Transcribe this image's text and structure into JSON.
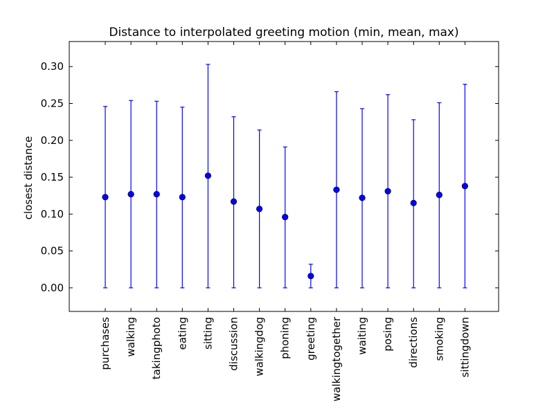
{
  "chart_data": {
    "type": "scatter",
    "title": "Distance to interpolated greeting motion (min, mean, max)",
    "xlabel": "",
    "ylabel": "closest distance",
    "ylim": [
      -0.032,
      0.334
    ],
    "yticks": [
      0.0,
      0.05,
      0.1,
      0.15,
      0.2,
      0.25,
      0.3
    ],
    "ytick_labels": [
      "0.00",
      "0.05",
      "0.10",
      "0.15",
      "0.20",
      "0.25",
      "0.30"
    ],
    "grid": false,
    "legend": "none",
    "color": "#0000ff",
    "categories": [
      "purchases",
      "walking",
      "takingphoto",
      "eating",
      "sitting",
      "discussion",
      "walkingdog",
      "phoning",
      "greeting",
      "walkingtogether",
      "waiting",
      "posing",
      "directions",
      "smoking",
      "sittingdown"
    ],
    "mean": [
      0.123,
      0.127,
      0.127,
      0.123,
      0.152,
      0.117,
      0.107,
      0.096,
      0.016,
      0.133,
      0.122,
      0.131,
      0.115,
      0.126,
      0.138
    ],
    "min": [
      0.0,
      0.0,
      0.0,
      0.0,
      0.0,
      0.0,
      0.0,
      0.0,
      0.0,
      0.0,
      0.0,
      0.0,
      0.0,
      0.0,
      0.0
    ],
    "max": [
      0.246,
      0.254,
      0.253,
      0.245,
      0.303,
      0.232,
      0.214,
      0.191,
      0.032,
      0.266,
      0.243,
      0.262,
      0.228,
      0.251,
      0.276
    ]
  }
}
